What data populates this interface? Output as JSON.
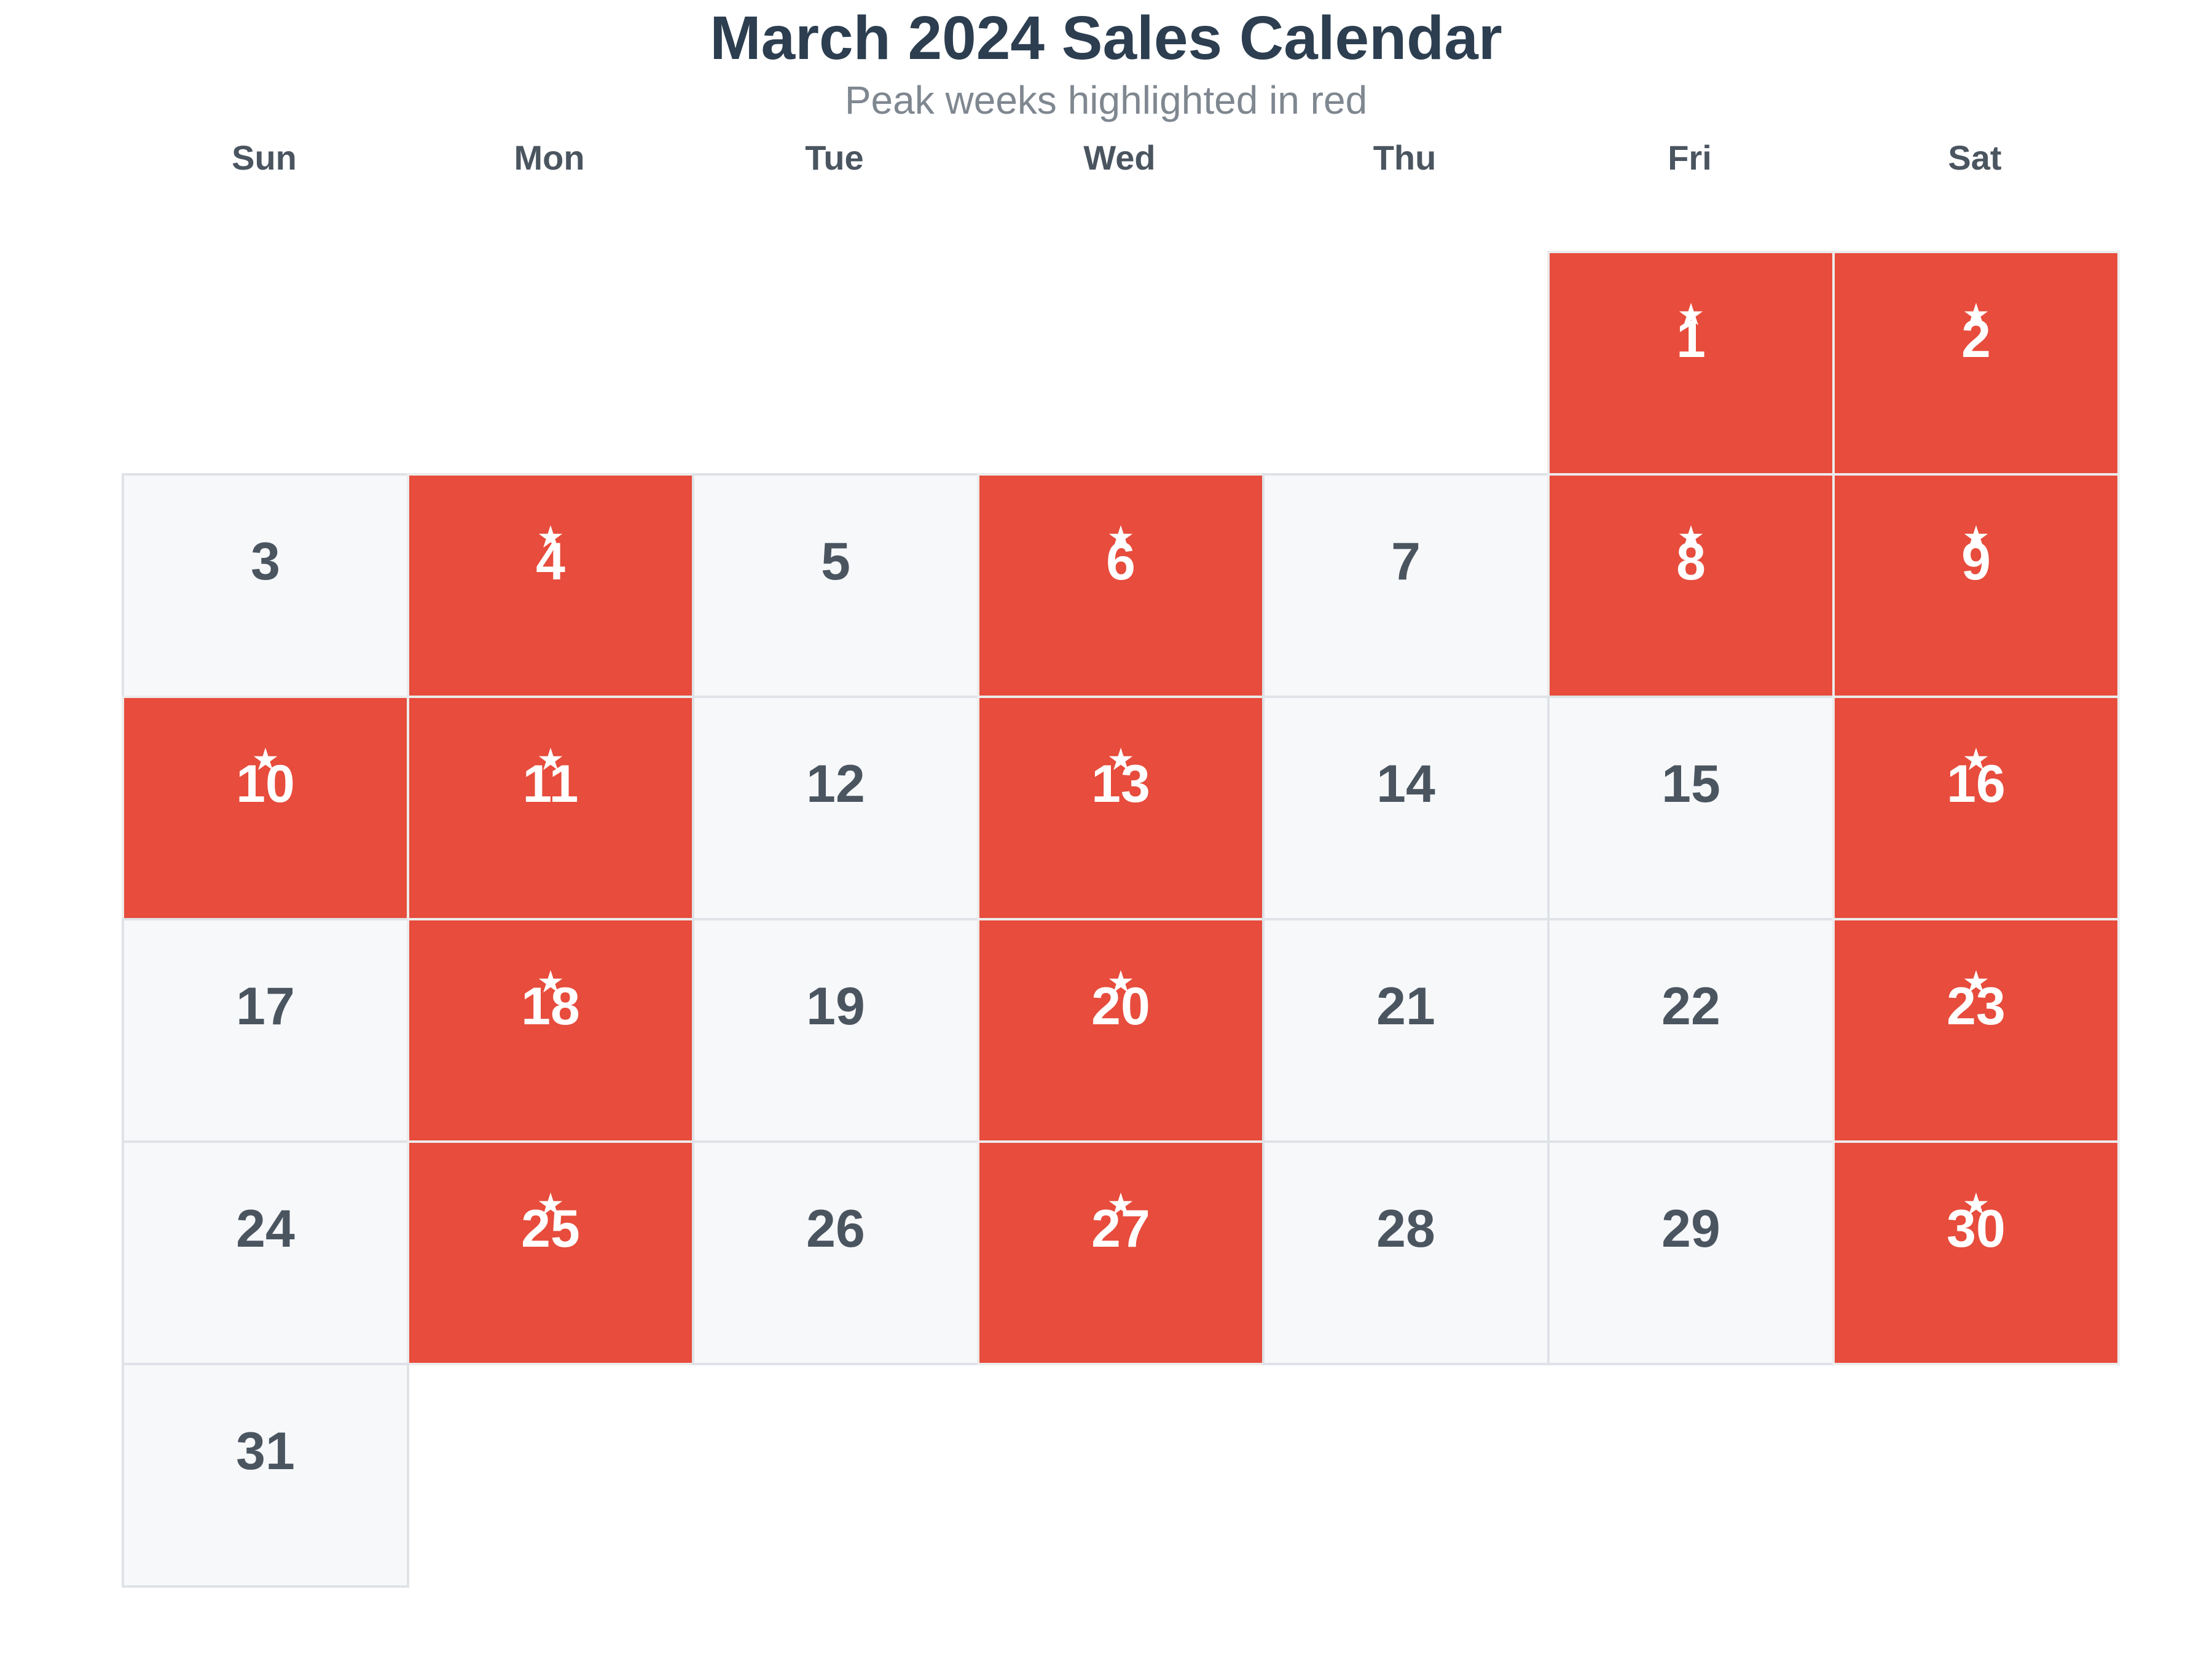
{
  "chart_data": {
    "type": "table",
    "title": "March 2024 Sales Calendar",
    "subtitle": "Peak weeks highlighted in red",
    "weekdays": [
      "Sun",
      "Mon",
      "Tue",
      "Wed",
      "Thu",
      "Fri",
      "Sat"
    ],
    "first_weekday_index": 5,
    "days_in_month": 31,
    "peak_days": [
      1,
      2,
      4,
      6,
      8,
      9,
      10,
      11,
      13,
      16,
      18,
      20,
      23,
      25,
      27,
      30
    ],
    "peak_marker": "★",
    "colors": {
      "peak": "#e74c3c",
      "normal": "#f7f8fa",
      "title": "#2c3e50",
      "day_text": "#4a5560"
    }
  }
}
